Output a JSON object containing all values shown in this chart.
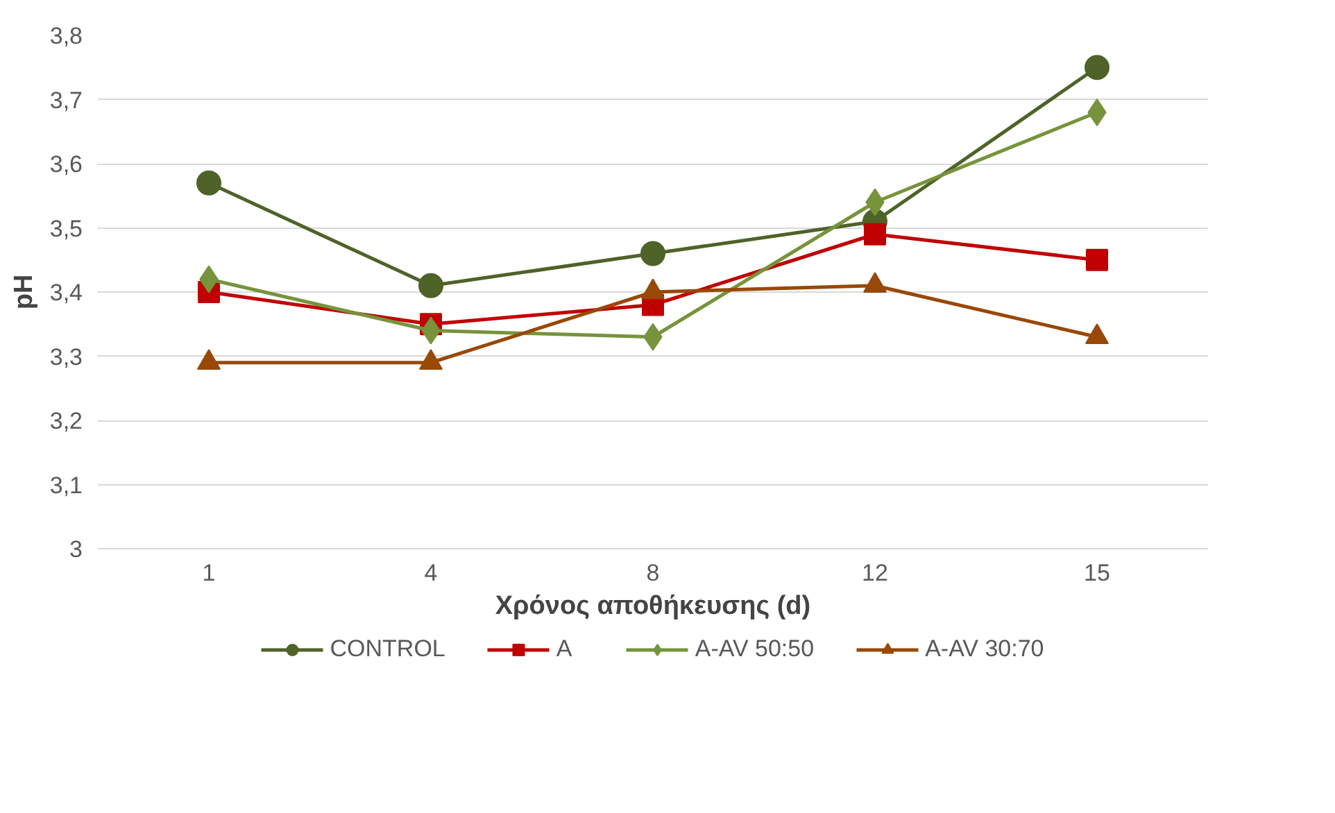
{
  "chart_data": {
    "type": "line",
    "xlabel": "Χρόνος αποθήκευσης (d)",
    "ylabel": "pH",
    "categories": [
      "1",
      "4",
      "8",
      "12",
      "15"
    ],
    "series": [
      {
        "name": "CONTROL",
        "color": "#4f6228",
        "marker": "circle",
        "values": [
          3.57,
          3.41,
          3.46,
          3.51,
          3.75
        ]
      },
      {
        "name": "A",
        "color": "#c00000",
        "marker": "square",
        "values": [
          3.4,
          3.35,
          3.38,
          3.49,
          3.45
        ]
      },
      {
        "name": "A-AV 50:50",
        "color": "#77933c",
        "marker": "diamond",
        "values": [
          3.42,
          3.34,
          3.33,
          3.54,
          3.68
        ]
      },
      {
        "name": "A-AV 30:70",
        "color": "#984807",
        "marker": "triangle",
        "values": [
          3.29,
          3.29,
          3.4,
          3.41,
          3.33
        ]
      }
    ],
    "ylim": [
      3,
      3.8
    ],
    "yticks": [
      3,
      {
        "value": 3.1,
        "label": "3,1"
      },
      {
        "value": 3.2,
        "label": "3,2"
      },
      {
        "value": 3.3,
        "label": "3,3"
      },
      {
        "value": 3.4,
        "label": "3,4"
      },
      {
        "value": 3.5,
        "label": "3,5"
      },
      {
        "value": 3.6,
        "label": "3,6"
      },
      {
        "value": 3.7,
        "label": "3,7"
      },
      {
        "value": 3.8,
        "label": "3,8"
      }
    ],
    "grid": "y",
    "legend": "bottom",
    "line_style": "solid"
  }
}
